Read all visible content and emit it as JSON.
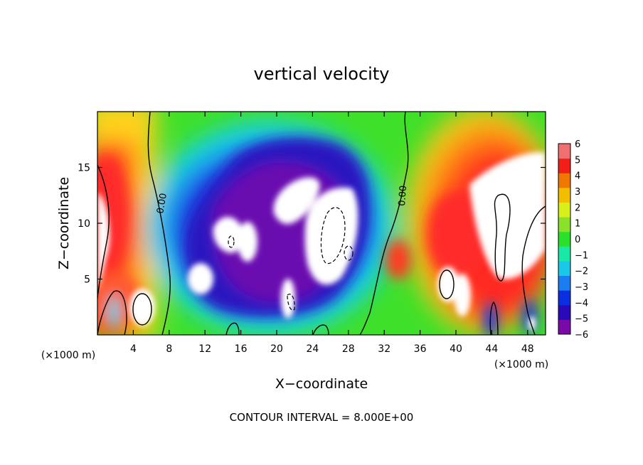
{
  "chart_data": {
    "type": "heatmap",
    "title": "vertical velocity",
    "xlabel": "X−coordinate",
    "ylabel": "Z−coordinate",
    "x_unit": "(×1000 m)",
    "z_unit": "(×1000 m)",
    "xlim": [
      0,
      50
    ],
    "ylim": [
      0,
      20
    ],
    "x_ticks": [
      4,
      8,
      12,
      16,
      20,
      24,
      28,
      32,
      36,
      40,
      44,
      48
    ],
    "x_tick_labels": [
      "4",
      "8",
      "12",
      "16",
      "20",
      "24",
      "28",
      "32",
      "36",
      "40",
      "44",
      "48"
    ],
    "y_ticks": [
      5,
      10,
      15
    ],
    "y_tick_labels": [
      "5",
      "10",
      "15"
    ],
    "colorbar": {
      "min": -6,
      "max": 6,
      "ticks": [
        6,
        5,
        4,
        3,
        2,
        1,
        0,
        -1,
        -2,
        -3,
        -4,
        -5,
        -6
      ],
      "tick_labels": [
        "6",
        "5",
        "4",
        "3",
        "2",
        "1",
        "0",
        "−1",
        "−2",
        "−3",
        "−4",
        "−5",
        "−6"
      ],
      "colors": [
        "#7a0aa8",
        "#2a0ab8",
        "#0a2ee0",
        "#1a7ef0",
        "#1ac8e8",
        "#1ae8a8",
        "#2ae02a",
        "#8ae02a",
        "#d8f01a",
        "#f0c000",
        "#f07800",
        "#f02018",
        "#f07070"
      ]
    },
    "contour_labels": [
      "0.00",
      "0.00"
    ],
    "contour_interval_text": "CONTOUR INTERVAL = 8.000E+00",
    "features": [
      {
        "kind": "downdraft",
        "x": 20,
        "z": 11.5,
        "value": -7
      },
      {
        "kind": "downdraft",
        "x": 26,
        "z": 9.5,
        "value": -7
      },
      {
        "kind": "updraft",
        "x": 1.5,
        "z": 8.5,
        "value": 7
      },
      {
        "kind": "updraft",
        "x": 46,
        "z": 11,
        "value": 7
      },
      {
        "kind": "updraft",
        "x": 40,
        "z": 7,
        "value": 6
      }
    ]
  }
}
